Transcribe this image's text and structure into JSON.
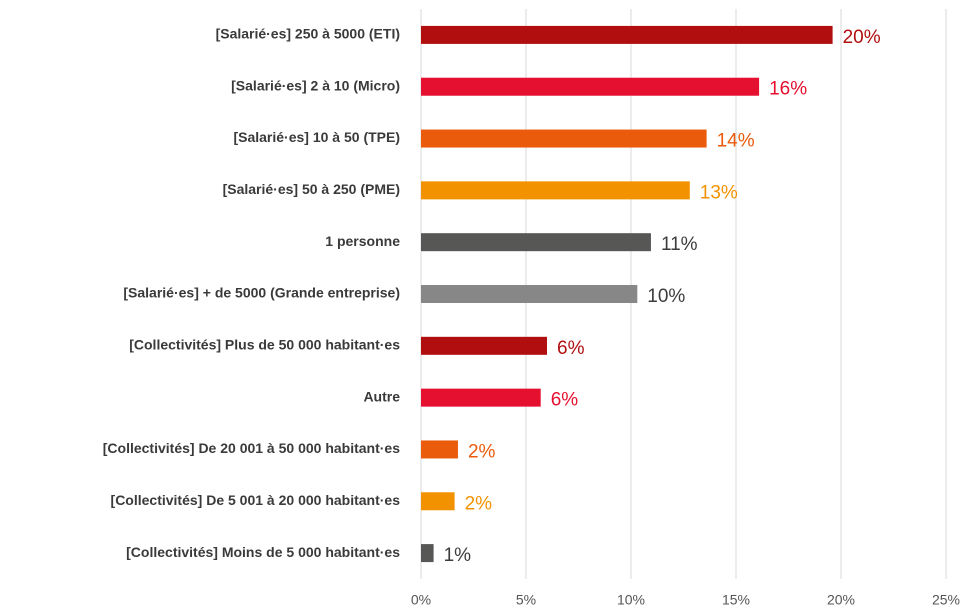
{
  "chart_data": {
    "type": "barh",
    "categories": [
      "[Salarié·es] 250 à 5000 (ETI)",
      "[Salarié·es] 2 à 10 (Micro)",
      "[Salarié·es] 10 à 50 (TPE)",
      "[Salarié·es] 50 à 250 (PME)",
      "1 personne",
      "[Salarié·es] + de 5000 (Grande entreprise)",
      "[Collectivités] Plus de 50 000 habitant·es",
      "Autre",
      "[Collectivités] De 20 001 à 50 000 habitant·es",
      "[Collectivités] De 5 001 à 20 000 habitant·es",
      "[Collectivités] Moins de 5 000 habitant·es"
    ],
    "values": [
      19.6,
      16.1,
      13.6,
      12.8,
      10.95,
      10.3,
      6.0,
      5.7,
      1.76,
      1.6,
      0.6
    ],
    "value_labels": [
      "20%",
      "16%",
      "14%",
      "13%",
      "11%",
      "10%",
      "6%",
      "6%",
      "2%",
      "2%",
      "1%"
    ],
    "colors": [
      "#b10f0f",
      "#e5102f",
      "#ea5b0c",
      "#f39200",
      "#575756",
      "#878787",
      "#b10f0f",
      "#e5102f",
      "#ea5b0c",
      "#f39200",
      "#575756"
    ],
    "label_colors": [
      "#b10f0f",
      "#e5102f",
      "#ea5b0c",
      "#f39200",
      "#3c3c3b",
      "#3c3c3b",
      "#b10f0f",
      "#e5102f",
      "#ea5b0c",
      "#f39200",
      "#3c3c3b"
    ],
    "xlim": [
      0,
      25
    ],
    "xticks": [
      {
        "value": 0,
        "label": "0%"
      },
      {
        "value": 5,
        "label": "5%"
      },
      {
        "value": 10,
        "label": "10%"
      },
      {
        "value": 15,
        "label": "15%"
      },
      {
        "value": 20,
        "label": "20%"
      },
      {
        "value": 25,
        "label": "25%"
      }
    ],
    "grid": true
  }
}
